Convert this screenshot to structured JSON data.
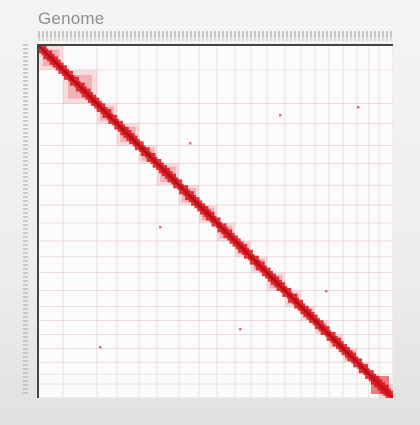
{
  "header": {
    "title": "Genome"
  },
  "heatmap": {
    "color": "#d9141c",
    "axis_icon": "tick-ruler"
  }
}
